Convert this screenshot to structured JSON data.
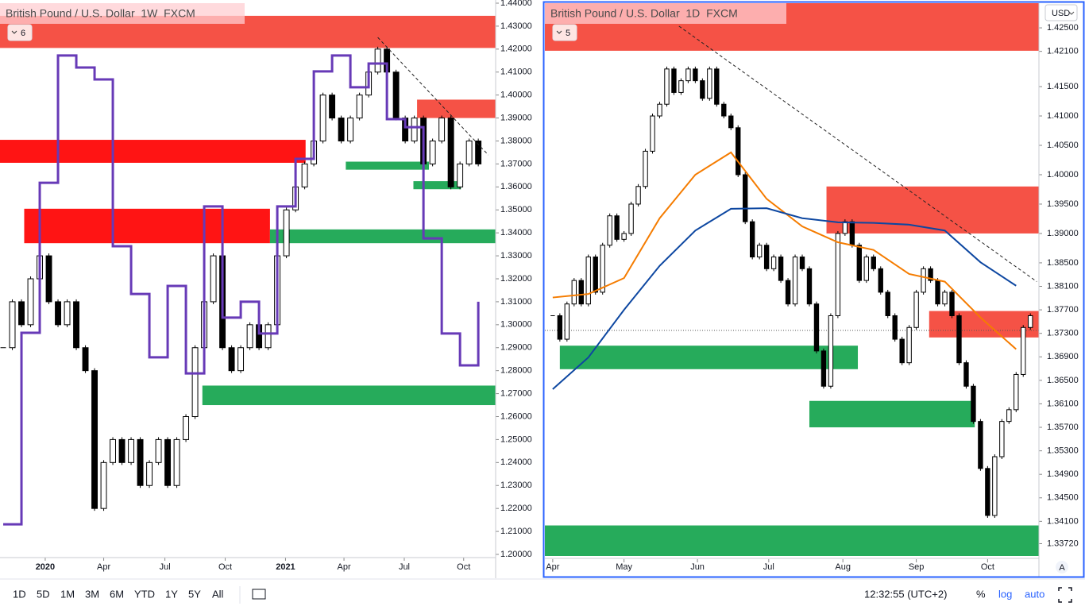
{
  "chart_data": [
    {
      "type": "candlestick",
      "title": "British Pound / U.S. Dollar  1W  FXCM",
      "badge": "6",
      "xlim": [
        -0.35,
        53.9
      ],
      "xticks": [
        {
          "value": 4.6,
          "label": "2020"
        },
        {
          "value": 11,
          "label": "Apr"
        },
        {
          "value": 17.7,
          "label": "Jul"
        },
        {
          "value": 24.3,
          "label": "Oct"
        },
        {
          "value": 30.9,
          "label": "2021"
        },
        {
          "value": 37.3,
          "label": "Apr"
        },
        {
          "value": 43.9,
          "label": "Jul"
        },
        {
          "value": 50.4,
          "label": "Oct"
        }
      ],
      "ylim": [
        1.2,
        1.44
      ],
      "yticks": [
        {
          "value": 1.2,
          "label": "1.20000"
        },
        {
          "value": 1.21,
          "label": "1.21000"
        },
        {
          "value": 1.22,
          "label": "1.22000"
        },
        {
          "value": 1.23,
          "label": "1.23000"
        },
        {
          "value": 1.24,
          "label": "1.24000"
        },
        {
          "value": 1.25,
          "label": "1.25000"
        },
        {
          "value": 1.26,
          "label": "1.26000"
        },
        {
          "value": 1.27,
          "label": "1.27000"
        },
        {
          "value": 1.28,
          "label": "1.28000"
        },
        {
          "value": 1.29,
          "label": "1.29000"
        },
        {
          "value": 1.3,
          "label": "1.30000"
        },
        {
          "value": 1.31,
          "label": "1.31000"
        },
        {
          "value": 1.32,
          "label": "1.32000"
        },
        {
          "value": 1.33,
          "label": "1.33000"
        },
        {
          "value": 1.34,
          "label": "1.34000"
        },
        {
          "value": 1.35,
          "label": "1.35000"
        },
        {
          "value": 1.36,
          "label": "1.36000"
        },
        {
          "value": 1.37,
          "label": "1.37000"
        },
        {
          "value": 1.38,
          "label": "1.38000"
        },
        {
          "value": 1.39,
          "label": "1.39000"
        },
        {
          "value": 1.4,
          "label": "1.40000"
        },
        {
          "value": 1.41,
          "label": "1.41000"
        },
        {
          "value": 1.42,
          "label": "1.42000"
        },
        {
          "value": 1.43,
          "label": "1.43000"
        },
        {
          "value": 1.44,
          "label": "1.44000"
        }
      ],
      "values": [
        1.29,
        1.31,
        1.3,
        1.32,
        1.33,
        1.31,
        1.3,
        1.31,
        1.29,
        1.28,
        1.22,
        1.24,
        1.25,
        1.24,
        1.25,
        1.23,
        1.24,
        1.25,
        1.23,
        1.25,
        1.26,
        1.29,
        1.31,
        1.33,
        1.29,
        1.28,
        1.29,
        1.3,
        1.29,
        1.3,
        1.33,
        1.35,
        1.36,
        1.37,
        1.38,
        1.4,
        1.39,
        1.38,
        1.39,
        1.4,
        1.41,
        1.42,
        1.41,
        1.39,
        1.38,
        1.39,
        1.37,
        1.38,
        1.39,
        1.36,
        1.37,
        1.38,
        1.37
      ],
      "up_color": "#ffffff",
      "down_color": "#000000",
      "lines": [
        {
          "color": "#673ab7",
          "step": true,
          "x": [
            0,
            2,
            4,
            6,
            8,
            10,
            12,
            14,
            16,
            18,
            20,
            22,
            24,
            26,
            28,
            30,
            32,
            34,
            36,
            38,
            40,
            42,
            44,
            46,
            48,
            50,
            52
          ],
          "values": [
            1.2131,
            1.2965,
            1.3618,
            1.4172,
            1.412,
            1.4068,
            1.3342,
            1.3134,
            1.2858,
            1.3169,
            1.2788,
            1.3515,
            1.3031,
            1.31,
            1.2962,
            1.3515,
            1.3722,
            1.4103,
            1.4172,
            1.4034,
            1.4137,
            1.3895,
            1.386,
            1.3376,
            1.2962,
            1.2823,
            1.31
          ]
        }
      ],
      "zones": [
        {
          "x": [
            -0.35,
            53.9
          ],
          "y": [
            1.4205,
            1.4345
          ],
          "color": "#f44336"
        },
        {
          "x": [
            -0.35,
            33.1
          ],
          "y": [
            1.3705,
            1.3805
          ],
          "color": "#ff0000"
        },
        {
          "x": [
            2.3,
            29.2
          ],
          "y": [
            1.3355,
            1.3505
          ],
          "color": "#ff0000"
        },
        {
          "x": [
            29.2,
            53.9
          ],
          "y": [
            1.3355,
            1.3415
          ],
          "color": "#14a44d"
        },
        {
          "x": [
            21.8,
            53.9
          ],
          "y": [
            1.265,
            1.2735
          ],
          "color": "#14a44d"
        },
        {
          "x": [
            45.3,
            53.9
          ],
          "y": [
            1.39,
            1.398
          ],
          "color": "#f44336"
        },
        {
          "x": [
            37.5,
            46.6
          ],
          "y": [
            1.3675,
            1.371
          ],
          "color": "#14a44d"
        },
        {
          "x": [
            44.9,
            50.1
          ],
          "y": [
            1.359,
            1.3625
          ],
          "color": "#14a44d"
        }
      ],
      "trendlines": [
        {
          "x": [
            41.0,
            53.1
          ],
          "y": [
            1.4251,
            1.3739
          ]
        }
      ]
    },
    {
      "type": "candlestick",
      "title": "British Pound / U.S. Dollar  1D  FXCM",
      "badge": "5",
      "xlim": [
        -1.1,
        68.2
      ],
      "xticks": [
        {
          "value": 0,
          "label": "Apr"
        },
        {
          "value": 10,
          "label": "May"
        },
        {
          "value": 20.3,
          "label": "Jun"
        },
        {
          "value": 30.3,
          "label": "Jul"
        },
        {
          "value": 40.7,
          "label": "Aug"
        },
        {
          "value": 51,
          "label": "Sep"
        },
        {
          "value": 61,
          "label": "Oct"
        }
      ],
      "ylim": [
        1.3351,
        1.4292
      ],
      "yticks": [
        {
          "value": 1.425,
          "label": "1.42500"
        },
        {
          "value": 1.421,
          "label": "1.42100"
        },
        {
          "value": 1.415,
          "label": "1.41500"
        },
        {
          "value": 1.41,
          "label": "1.41000"
        },
        {
          "value": 1.405,
          "label": "1.40500"
        },
        {
          "value": 1.4,
          "label": "1.40000"
        },
        {
          "value": 1.395,
          "label": "1.39500"
        },
        {
          "value": 1.39,
          "label": "1.39000"
        },
        {
          "value": 1.385,
          "label": "1.38500"
        },
        {
          "value": 1.381,
          "label": "1.38100"
        },
        {
          "value": 1.377,
          "label": "1.37700"
        },
        {
          "value": 1.373,
          "label": "1.37300"
        },
        {
          "value": 1.369,
          "label": "1.36900"
        },
        {
          "value": 1.365,
          "label": "1.36500"
        },
        {
          "value": 1.361,
          "label": "1.36100"
        },
        {
          "value": 1.357,
          "label": "1.35700"
        },
        {
          "value": 1.353,
          "label": "1.35300"
        },
        {
          "value": 1.349,
          "label": "1.34900"
        },
        {
          "value": 1.345,
          "label": "1.34500"
        },
        {
          "value": 1.341,
          "label": "1.34100"
        },
        {
          "value": 1.3372,
          "label": "1.33720"
        }
      ],
      "values": [
        1.376,
        1.372,
        1.378,
        1.382,
        1.378,
        1.386,
        1.38,
        1.388,
        1.393,
        1.389,
        1.39,
        1.395,
        1.398,
        1.404,
        1.41,
        1.412,
        1.418,
        1.414,
        1.416,
        1.418,
        1.416,
        1.413,
        1.418,
        1.412,
        1.41,
        1.408,
        1.4,
        1.392,
        1.386,
        1.388,
        1.384,
        1.386,
        1.382,
        1.378,
        1.386,
        1.384,
        1.378,
        1.37,
        1.364,
        1.376,
        1.39,
        1.392,
        1.388,
        1.382,
        1.386,
        1.384,
        1.38,
        1.376,
        1.372,
        1.368,
        1.374,
        1.38,
        1.384,
        1.382,
        1.378,
        1.38,
        1.376,
        1.368,
        1.364,
        1.358,
        1.35,
        1.342,
        1.352,
        1.358,
        1.36,
        1.366,
        1.374,
        1.376
      ],
      "up_color": "#ffffff",
      "down_color": "#000000",
      "lines": [
        {
          "color": "#f57c00",
          "step": false,
          "x": [
            0,
            5,
            10,
            15,
            20,
            25,
            30,
            35,
            40,
            45,
            50,
            55,
            60,
            65
          ],
          "values": [
            1.3791,
            1.3797,
            1.3824,
            1.3926,
            1.4,
            1.4038,
            1.3959,
            1.3912,
            1.3885,
            1.3872,
            1.3831,
            1.3818,
            1.3757,
            1.3703
          ]
        },
        {
          "color": "#0d47a1",
          "step": false,
          "x": [
            0,
            5,
            10,
            15,
            20,
            25,
            30,
            35,
            40,
            45,
            50,
            55,
            60,
            65
          ],
          "values": [
            1.3635,
            1.3689,
            1.377,
            1.3845,
            1.3905,
            1.3942,
            1.3943,
            1.3926,
            1.3919,
            1.3918,
            1.3915,
            1.3905,
            1.3851,
            1.3811
          ]
        }
      ],
      "zones": [
        {
          "x": [
            -1.1,
            68.2
          ],
          "y": [
            1.4211,
            1.4292
          ],
          "color": "#f44336"
        },
        {
          "x": [
            38.4,
            68.2
          ],
          "y": [
            1.39,
            1.398
          ],
          "color": "#f44336"
        },
        {
          "x": [
            52.8,
            68.2
          ],
          "y": [
            1.3723,
            1.3768
          ],
          "color": "#f44336"
        },
        {
          "x": [
            1,
            42.8
          ],
          "y": [
            1.3669,
            1.3709
          ],
          "color": "#14a44d"
        },
        {
          "x": [
            36,
            59.2
          ],
          "y": [
            1.357,
            1.3615
          ],
          "color": "#14a44d"
        },
        {
          "x": [
            -1.1,
            68.2
          ],
          "y": [
            1.3351,
            1.3403
          ],
          "color": "#14a44d"
        }
      ],
      "trendlines": [
        {
          "x": [
            17.7,
            67.9
          ],
          "y": [
            1.4253,
            1.3818
          ]
        }
      ],
      "price_line": 1.3735
    }
  ],
  "toolbar": {
    "ranges": [
      "1D",
      "5D",
      "1M",
      "3M",
      "6M",
      "YTD",
      "1Y",
      "5Y",
      "All"
    ],
    "clock": "12:32:55 (UTC+2)",
    "percent": "%",
    "log": "log",
    "auto": "auto"
  },
  "currency": "USD",
  "scale_mode": "A"
}
